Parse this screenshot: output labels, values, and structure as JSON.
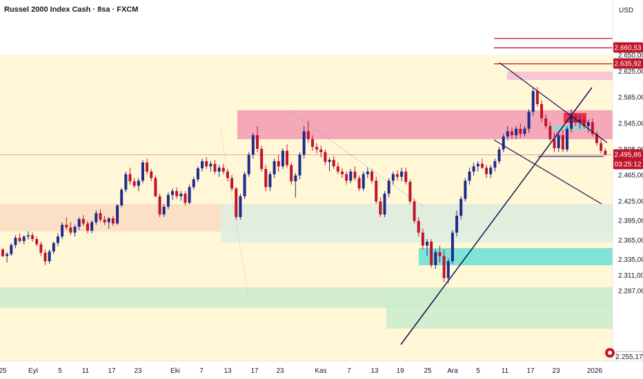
{
  "header": {
    "title": "Russel 2000 Index Cash · 8sa · FXCM",
    "currency": "USD"
  },
  "colors": {
    "up": "#1f2a8a",
    "down": "#c0142b",
    "red_zone": "#f4a8b8",
    "red_zone_top": "#f7c6d3",
    "teal_zone": "#7fe3d6",
    "green_zone": "#cdeccd",
    "peach_zone": "#fbd9c2",
    "yellow_bg": "#fff7d6",
    "trendline": "#101050",
    "red_line": "#d0102a",
    "price_badge": "#c0142b",
    "last_level_line": "#1f2a8a"
  },
  "badges": {
    "level1": "2.660,53",
    "level2": "2.635,92",
    "last_price": "2.495,86",
    "countdown": "03:25:12",
    "bottom": "2.255,17"
  },
  "chart_data": {
    "type": "candlestick",
    "title": "Russel 2000 Index Cash · 8sa · FXCM",
    "yaxis": {
      "range": [
        2255,
        2690
      ],
      "ticks": [
        "2.650,00",
        "2.625,00",
        "2.585,00",
        "2.545,00",
        "2.505,00",
        "2.465,00",
        "2.425,00",
        "2.395,00",
        "2.365,00",
        "2.335,00",
        "2.311,00",
        "2.287,00"
      ],
      "tick_values": [
        2650,
        2625,
        2585,
        2545,
        2505,
        2465,
        2425,
        2395,
        2365,
        2335,
        2311,
        2287
      ]
    },
    "xaxis": {
      "ticks": [
        "25",
        "Eyl",
        "5",
        "11",
        "17",
        "23",
        "Eki",
        "7",
        "13",
        "17",
        "23",
        "Kas",
        "7",
        "13",
        "19",
        "25",
        "Ara",
        "5",
        "11",
        "17",
        "23",
        "2026"
      ]
    },
    "horizontal_levels": [
      2675,
      2660.53,
      2635.92
    ],
    "last_price": 2495.86,
    "candles": [
      [
        2350,
        2352,
        2338,
        2340
      ],
      [
        2340,
        2346,
        2330,
        2343
      ],
      [
        2343,
        2360,
        2340,
        2357
      ],
      [
        2357,
        2372,
        2352,
        2368
      ],
      [
        2368,
        2375,
        2360,
        2363
      ],
      [
        2363,
        2372,
        2358,
        2370
      ],
      [
        2370,
        2378,
        2365,
        2372
      ],
      [
        2372,
        2376,
        2362,
        2366
      ],
      [
        2366,
        2370,
        2355,
        2358
      ],
      [
        2358,
        2362,
        2340,
        2345
      ],
      [
        2345,
        2350,
        2326,
        2332
      ],
      [
        2332,
        2350,
        2328,
        2347
      ],
      [
        2347,
        2362,
        2343,
        2360
      ],
      [
        2360,
        2375,
        2355,
        2370
      ],
      [
        2370,
        2392,
        2366,
        2388
      ],
      [
        2388,
        2400,
        2380,
        2384
      ],
      [
        2384,
        2392,
        2372,
        2376
      ],
      [
        2376,
        2388,
        2370,
        2385
      ],
      [
        2385,
        2400,
        2380,
        2397
      ],
      [
        2397,
        2403,
        2386,
        2390
      ],
      [
        2390,
        2394,
        2375,
        2379
      ],
      [
        2379,
        2395,
        2375,
        2392
      ],
      [
        2392,
        2410,
        2388,
        2406
      ],
      [
        2406,
        2412,
        2392,
        2396
      ],
      [
        2396,
        2402,
        2388,
        2392
      ],
      [
        2392,
        2400,
        2382,
        2398
      ],
      [
        2398,
        2402,
        2386,
        2390
      ],
      [
        2390,
        2420,
        2388,
        2418
      ],
      [
        2418,
        2445,
        2415,
        2442
      ],
      [
        2442,
        2470,
        2438,
        2466
      ],
      [
        2466,
        2476,
        2450,
        2455
      ],
      [
        2455,
        2460,
        2445,
        2448
      ],
      [
        2448,
        2460,
        2440,
        2456
      ],
      [
        2456,
        2488,
        2452,
        2484
      ],
      [
        2484,
        2490,
        2465,
        2470
      ],
      [
        2470,
        2474,
        2455,
        2460
      ],
      [
        2460,
        2464,
        2430,
        2432
      ],
      [
        2432,
        2436,
        2400,
        2404
      ],
      [
        2404,
        2420,
        2400,
        2416
      ],
      [
        2416,
        2438,
        2412,
        2434
      ],
      [
        2434,
        2444,
        2426,
        2440
      ],
      [
        2440,
        2446,
        2428,
        2432
      ],
      [
        2432,
        2440,
        2425,
        2436
      ],
      [
        2436,
        2440,
        2418,
        2422
      ],
      [
        2422,
        2450,
        2420,
        2446
      ],
      [
        2446,
        2462,
        2442,
        2458
      ],
      [
        2458,
        2478,
        2454,
        2475
      ],
      [
        2475,
        2490,
        2470,
        2486
      ],
      [
        2486,
        2492,
        2474,
        2478
      ],
      [
        2478,
        2486,
        2470,
        2482
      ],
      [
        2482,
        2488,
        2466,
        2470
      ],
      [
        2470,
        2480,
        2462,
        2476
      ],
      [
        2476,
        2482,
        2466,
        2470
      ],
      [
        2470,
        2474,
        2455,
        2460
      ],
      [
        2460,
        2465,
        2440,
        2444
      ],
      [
        2444,
        2446,
        2396,
        2400
      ],
      [
        2400,
        2436,
        2396,
        2432
      ],
      [
        2432,
        2470,
        2428,
        2466
      ],
      [
        2466,
        2500,
        2462,
        2496
      ],
      [
        2496,
        2530,
        2490,
        2526
      ],
      [
        2526,
        2540,
        2500,
        2505
      ],
      [
        2505,
        2510,
        2470,
        2474
      ],
      [
        2474,
        2480,
        2440,
        2446
      ],
      [
        2446,
        2470,
        2440,
        2466
      ],
      [
        2466,
        2490,
        2460,
        2486
      ],
      [
        2486,
        2496,
        2470,
        2478
      ],
      [
        2478,
        2506,
        2474,
        2502
      ],
      [
        2502,
        2512,
        2476,
        2480
      ],
      [
        2480,
        2484,
        2450,
        2455
      ],
      [
        2455,
        2468,
        2430,
        2464
      ],
      [
        2464,
        2500,
        2458,
        2496
      ],
      [
        2496,
        2540,
        2490,
        2532
      ],
      [
        2532,
        2548,
        2515,
        2520
      ],
      [
        2520,
        2526,
        2502,
        2508
      ],
      [
        2508,
        2514,
        2498,
        2504
      ],
      [
        2504,
        2510,
        2492,
        2500
      ],
      [
        2500,
        2504,
        2480,
        2485
      ],
      [
        2485,
        2492,
        2470,
        2488
      ],
      [
        2488,
        2494,
        2474,
        2478
      ],
      [
        2478,
        2484,
        2466,
        2470
      ],
      [
        2470,
        2475,
        2460,
        2466
      ],
      [
        2466,
        2470,
        2450,
        2456
      ],
      [
        2456,
        2474,
        2452,
        2470
      ],
      [
        2470,
        2478,
        2456,
        2460
      ],
      [
        2460,
        2464,
        2440,
        2444
      ],
      [
        2444,
        2470,
        2440,
        2466
      ],
      [
        2466,
        2476,
        2460,
        2470
      ],
      [
        2470,
        2474,
        2452,
        2456
      ],
      [
        2456,
        2462,
        2420,
        2424
      ],
      [
        2424,
        2430,
        2400,
        2404
      ],
      [
        2404,
        2440,
        2400,
        2436
      ],
      [
        2436,
        2460,
        2430,
        2456
      ],
      [
        2456,
        2470,
        2450,
        2466
      ],
      [
        2466,
        2472,
        2456,
        2462
      ],
      [
        2462,
        2476,
        2455,
        2470
      ],
      [
        2470,
        2476,
        2450,
        2454
      ],
      [
        2454,
        2458,
        2420,
        2424
      ],
      [
        2424,
        2428,
        2390,
        2394
      ],
      [
        2394,
        2400,
        2370,
        2376
      ],
      [
        2376,
        2382,
        2350,
        2356
      ],
      [
        2356,
        2366,
        2340,
        2362
      ],
      [
        2362,
        2366,
        2322,
        2326
      ],
      [
        2326,
        2350,
        2320,
        2346
      ],
      [
        2346,
        2356,
        2330,
        2340
      ],
      [
        2340,
        2350,
        2300,
        2306
      ],
      [
        2306,
        2336,
        2298,
        2332
      ],
      [
        2332,
        2380,
        2328,
        2376
      ],
      [
        2376,
        2410,
        2370,
        2402
      ],
      [
        2402,
        2432,
        2396,
        2428
      ],
      [
        2428,
        2460,
        2424,
        2456
      ],
      [
        2456,
        2476,
        2450,
        2470
      ],
      [
        2470,
        2484,
        2464,
        2478
      ],
      [
        2478,
        2486,
        2470,
        2482
      ],
      [
        2482,
        2490,
        2474,
        2476
      ],
      [
        2476,
        2480,
        2460,
        2466
      ],
      [
        2466,
        2480,
        2460,
        2476
      ],
      [
        2476,
        2490,
        2470,
        2486
      ],
      [
        2486,
        2508,
        2482,
        2504
      ],
      [
        2504,
        2528,
        2500,
        2524
      ],
      [
        2524,
        2540,
        2518,
        2532
      ],
      [
        2532,
        2538,
        2520,
        2526
      ],
      [
        2526,
        2540,
        2520,
        2536
      ],
      [
        2536,
        2544,
        2522,
        2528
      ],
      [
        2528,
        2540,
        2524,
        2536
      ],
      [
        2536,
        2566,
        2530,
        2562
      ],
      [
        2562,
        2600,
        2556,
        2594
      ],
      [
        2594,
        2600,
        2570,
        2574
      ],
      [
        2574,
        2580,
        2546,
        2552
      ],
      [
        2552,
        2558,
        2536,
        2540
      ],
      [
        2540,
        2546,
        2516,
        2520
      ],
      [
        2520,
        2530,
        2500,
        2506
      ],
      [
        2506,
        2530,
        2500,
        2526
      ],
      [
        2526,
        2534,
        2500,
        2504
      ],
      [
        2504,
        2540,
        2500,
        2536
      ],
      [
        2536,
        2566,
        2530,
        2556
      ],
      [
        2556,
        2560,
        2540,
        2546
      ],
      [
        2546,
        2556,
        2536,
        2550
      ],
      [
        2550,
        2556,
        2536,
        2540
      ],
      [
        2540,
        2550,
        2530,
        2546
      ],
      [
        2546,
        2552,
        2524,
        2528
      ],
      [
        2528,
        2532,
        2510,
        2514
      ],
      [
        2514,
        2520,
        2498,
        2502
      ],
      [
        2502,
        2506,
        2494,
        2496
      ]
    ]
  }
}
